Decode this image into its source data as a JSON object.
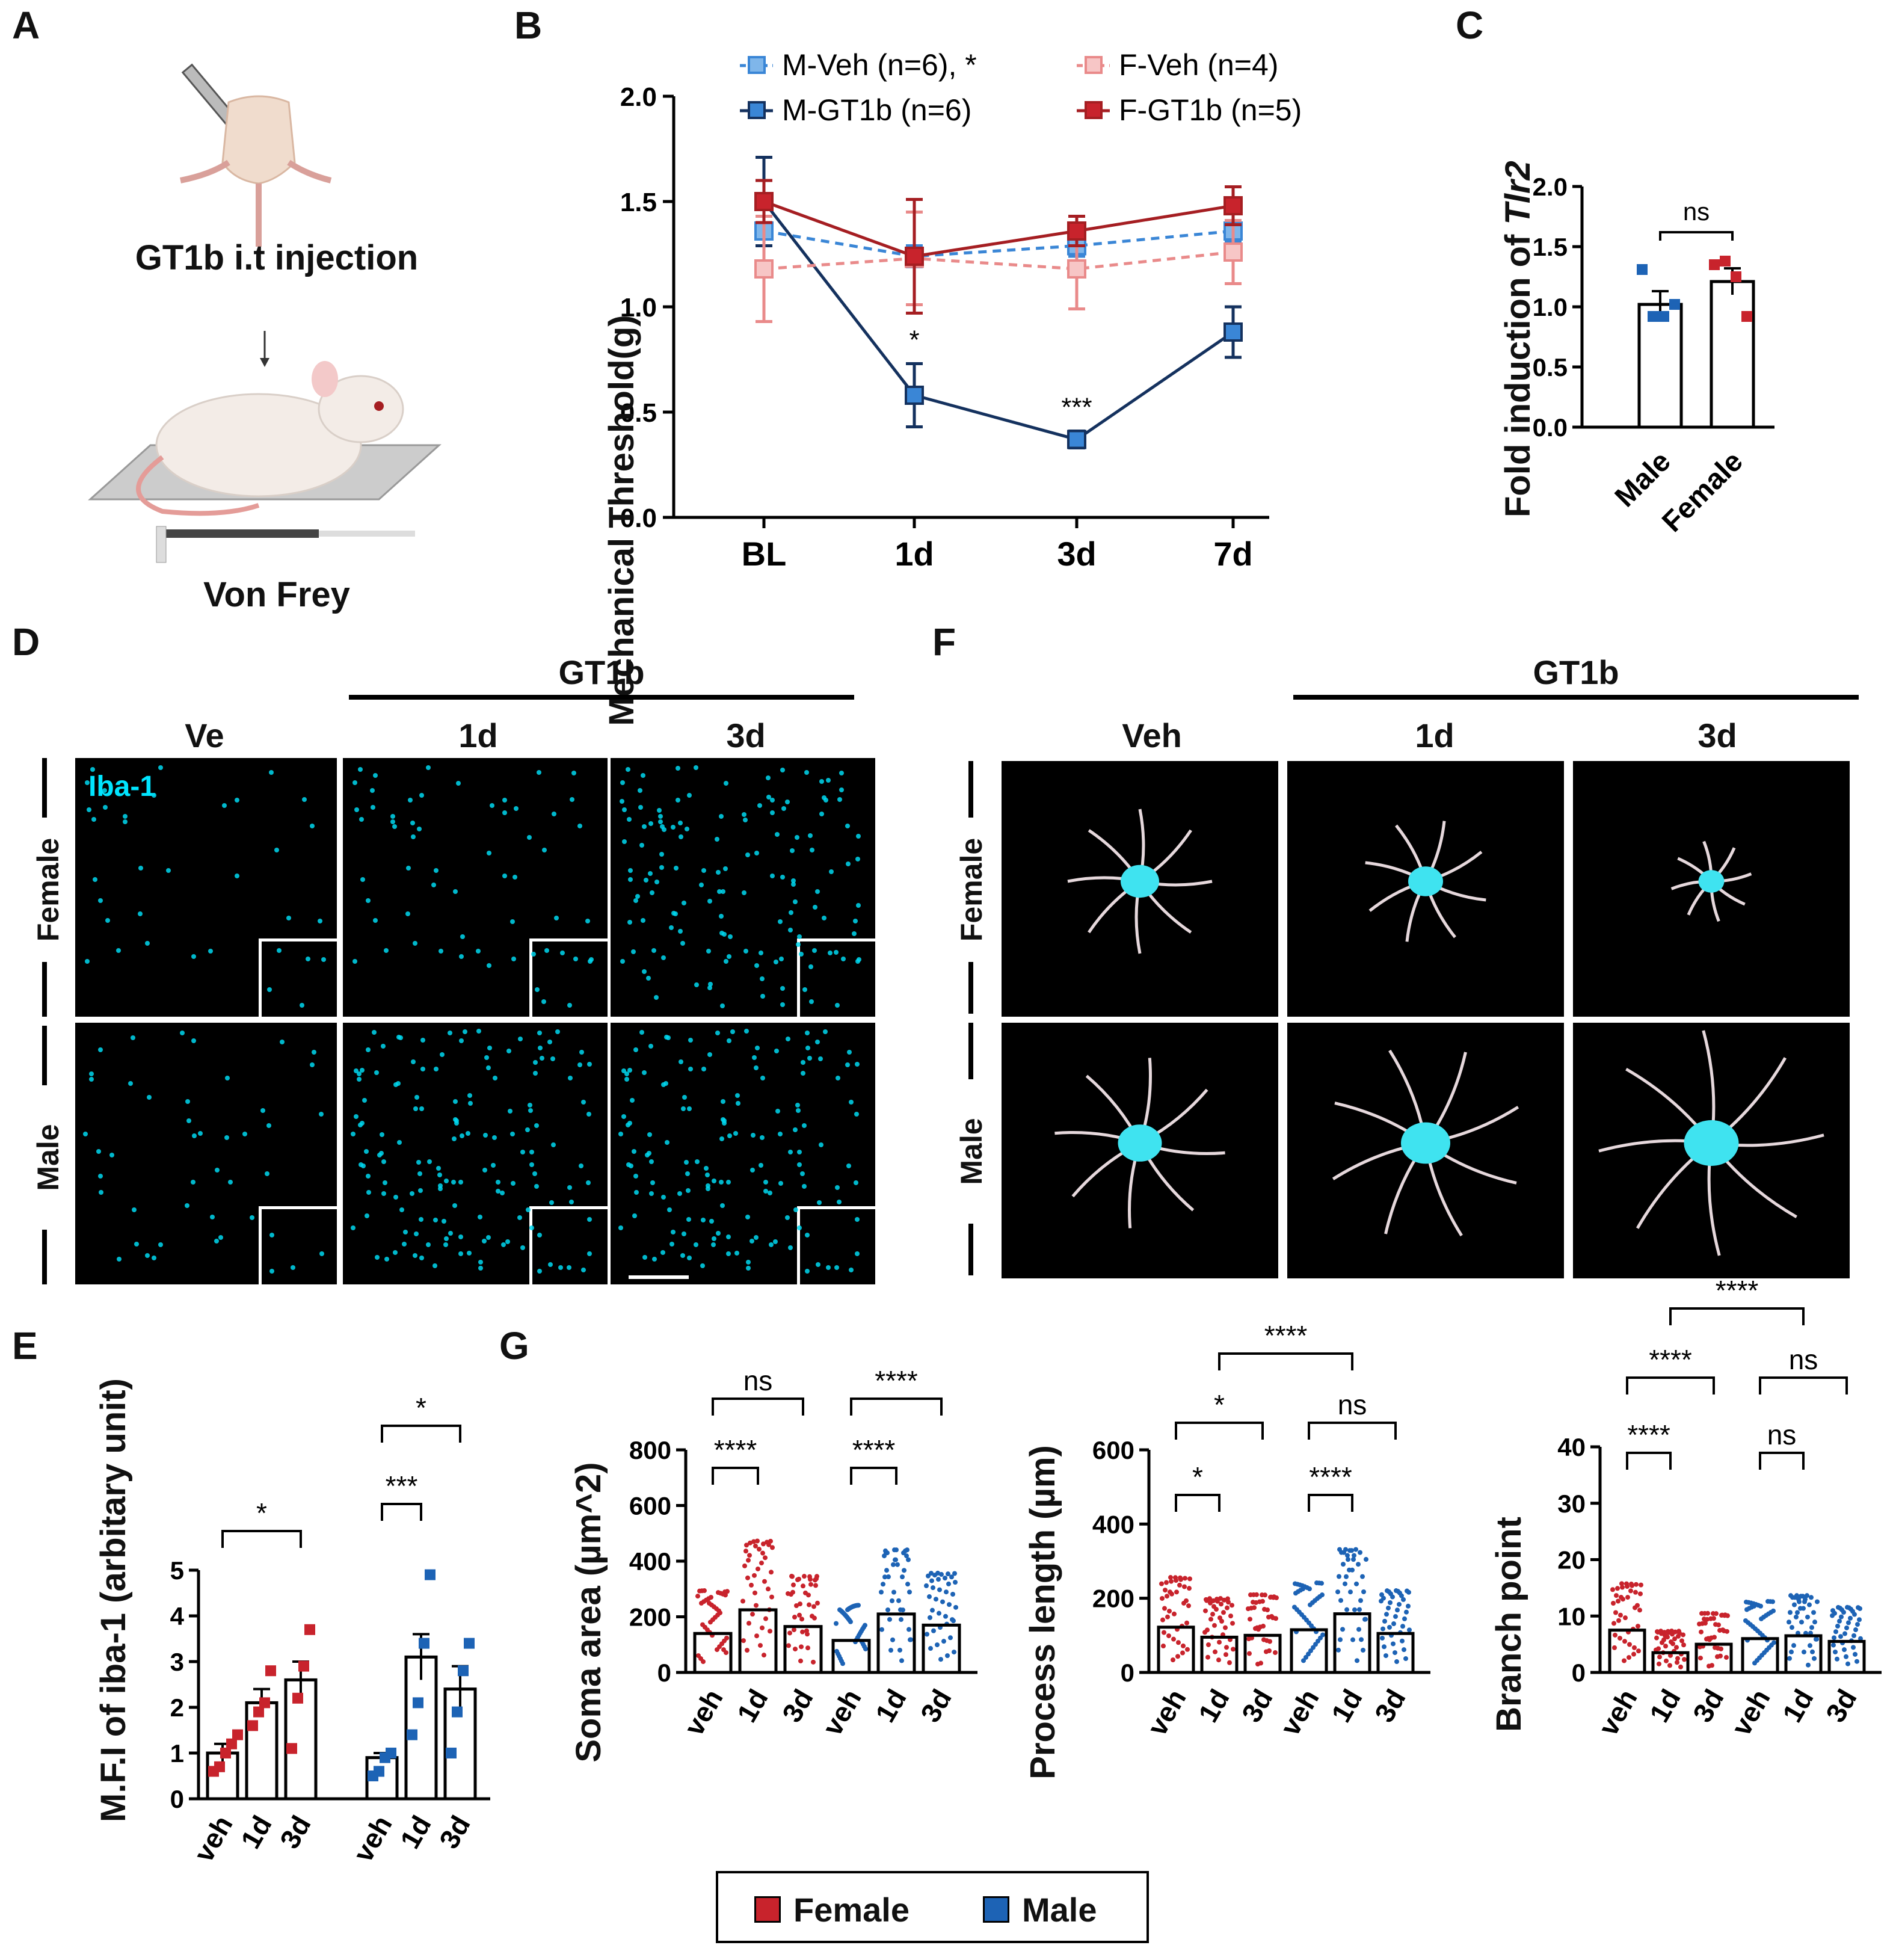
{
  "panel_labels": {
    "a": "A",
    "b": "B",
    "c": "C",
    "d": "D",
    "e": "E",
    "f": "F",
    "g": "G"
  },
  "panel_a": {
    "step1": "GT1b i.t injection",
    "step2": "Von Frey",
    "icons": [
      "syringe-icon",
      "mouse-icon",
      "down-arrow-icon",
      "von-frey-filament-icon"
    ]
  },
  "panel_d": {
    "treatment": "GT1b",
    "cols": [
      "Ve",
      "1d",
      "3d"
    ],
    "rows": [
      "Female",
      "Male"
    ],
    "stain": "Iba-1",
    "stain_color": "#00e5ff"
  },
  "panel_f": {
    "treatment": "GT1b",
    "cols": [
      "Veh",
      "1d",
      "3d"
    ],
    "rows": [
      "Female",
      "Male"
    ]
  },
  "colors": {
    "male_light": "#3a86d6",
    "male_dark": "#14315e",
    "female_light": "#e98a8a",
    "female_dark": "#a51e22",
    "female_bar": "#c8232c",
    "male_bar": "#1d63b5"
  },
  "legend": {
    "female": "Female",
    "male": "Male"
  },
  "chart_data": [
    {
      "id": "B",
      "type": "line",
      "ylabel": "Mechanical Threshold(g)",
      "categories": [
        "BL",
        "1d",
        "3d",
        "7d"
      ],
      "ylim": [
        0,
        2.0
      ],
      "yticks": [
        "0.0",
        "0.5",
        "1.0",
        "1.5",
        "2.0"
      ],
      "legend": [
        "M-Veh (n=6), *",
        "M-GT1b (n=6)",
        "F-Veh (n=4)",
        "F-GT1b (n=5)"
      ],
      "series": [
        {
          "name": "M-Veh (n=6), *",
          "values": [
            1.36,
            1.24,
            1.29,
            1.36
          ],
          "err": [
            0.07,
            0.05,
            0.05,
            0.05
          ],
          "style": "dashed"
        },
        {
          "name": "M-GT1b (n=6)",
          "values": [
            1.5,
            0.58,
            0.37,
            0.88
          ],
          "err": [
            0.21,
            0.15,
            0.04,
            0.12
          ],
          "style": "solid"
        },
        {
          "name": "F-Veh (n=4)",
          "values": [
            1.18,
            1.23,
            1.18,
            1.26
          ],
          "err": [
            0.25,
            0.22,
            0.19,
            0.15
          ],
          "style": "dashed"
        },
        {
          "name": "F-GT1b (n=5)",
          "values": [
            1.5,
            1.24,
            1.36,
            1.48
          ],
          "err": [
            0.1,
            0.27,
            0.07,
            0.09
          ],
          "style": "solid"
        }
      ],
      "annotations": [
        "*",
        "***"
      ]
    },
    {
      "id": "C",
      "type": "bar",
      "ylabel": "Fold induction of ",
      "ylabel_gene": "Tlr2",
      "categories": [
        "Male",
        "Female"
      ],
      "values": [
        1.02,
        1.21
      ],
      "err": [
        0.11,
        0.11
      ],
      "ylim": [
        0,
        2.0
      ],
      "yticks": [
        "0.0",
        "0.5",
        "1.0",
        "1.5",
        "2.0"
      ],
      "points": [
        [
          1.31,
          0.92,
          0.92,
          1.02
        ],
        [
          1.35,
          1.38,
          1.25,
          0.92
        ]
      ],
      "annotation": "ns"
    },
    {
      "id": "E",
      "type": "bar",
      "ylabel": "M.F.I of iba-1 (arbitary unit)",
      "categories": [
        "veh",
        "1d",
        "3d",
        "veh",
        "1d",
        "3d"
      ],
      "values": [
        1.0,
        2.1,
        2.6,
        0.9,
        3.1,
        2.4
      ],
      "err": [
        0.2,
        0.3,
        0.4,
        0.1,
        0.5,
        0.5
      ],
      "ylim": [
        0,
        5
      ],
      "yticks": [
        "0",
        "1",
        "2",
        "3",
        "4",
        "5"
      ],
      "sig": [
        "*",
        "***",
        "*"
      ]
    },
    {
      "id": "G1",
      "type": "bar",
      "ylabel": "Soma area (µm^2)",
      "categories": [
        "veh",
        "1d",
        "3d",
        "veh",
        "1d",
        "3d"
      ],
      "values": [
        140,
        225,
        165,
        115,
        210,
        170
      ],
      "ylim": [
        0,
        800
      ],
      "yticks": [
        "0",
        "200",
        "400",
        "600",
        "800"
      ],
      "sig": [
        "ns",
        "****",
        "****",
        "****"
      ]
    },
    {
      "id": "G2",
      "type": "bar",
      "ylabel": "Process length (µm)",
      "categories": [
        "veh",
        "1d",
        "3d",
        "veh",
        "1d",
        "3d"
      ],
      "values": [
        122,
        95,
        100,
        115,
        158,
        105
      ],
      "ylim": [
        0,
        600
      ],
      "yticks": [
        "0",
        "200",
        "400",
        "600"
      ],
      "sig": [
        "****",
        "*",
        "ns",
        "*",
        "****"
      ]
    },
    {
      "id": "G3",
      "type": "bar",
      "ylabel": "Branch point",
      "categories": [
        "veh",
        "1d",
        "3d",
        "veh",
        "1d",
        "3d"
      ],
      "values": [
        7.5,
        3.5,
        5.0,
        6.0,
        6.5,
        5.5
      ],
      "ylim": [
        0,
        40
      ],
      "yticks": [
        "0",
        "10",
        "20",
        "30",
        "40"
      ],
      "sig": [
        "****",
        "****",
        "ns",
        "****",
        "ns"
      ]
    }
  ]
}
